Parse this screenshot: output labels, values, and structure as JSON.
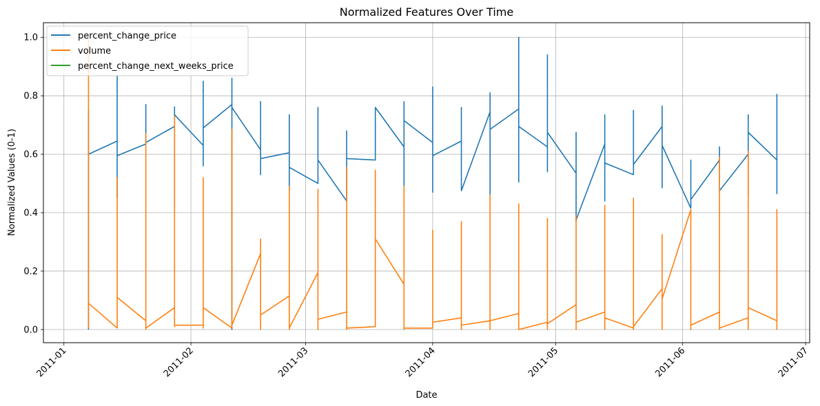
{
  "chart_data": {
    "type": "line",
    "title": "Normalized Features Over Time",
    "xlabel": "Date",
    "ylabel": "Normalized Values (0-1)",
    "x_ticks": [
      "2011-01",
      "2011-02",
      "2011-03",
      "2011-04",
      "2011-05",
      "2011-06",
      "2011-07"
    ],
    "y_ticks": [
      "0.0",
      "0.2",
      "0.4",
      "0.6",
      "0.8",
      "1.0"
    ],
    "xlim": [
      "2010-12-27",
      "2011-07-02"
    ],
    "ylim": [
      -0.045,
      1.05
    ],
    "grid": true,
    "legend_position": "upper-left",
    "series": [
      {
        "name": "percent_change_price",
        "color": "#1f77b4",
        "points": [
          [
            "2011-01-07",
            0.0
          ],
          [
            "2011-01-07",
            0.75
          ],
          [
            "2011-01-07",
            0.3
          ],
          [
            "2011-01-07",
            0.6
          ],
          [
            "2011-01-14",
            0.645
          ],
          [
            "2011-01-14",
            0.45
          ],
          [
            "2011-01-14",
            0.87
          ],
          [
            "2011-01-14",
            0.53
          ],
          [
            "2011-01-14",
            0.595
          ],
          [
            "2011-01-21",
            0.635
          ],
          [
            "2011-01-21",
            0.77
          ],
          [
            "2011-01-21",
            0.64
          ],
          [
            "2011-01-28",
            0.695
          ],
          [
            "2011-01-28",
            0.42
          ],
          [
            "2011-01-28",
            0.762
          ],
          [
            "2011-01-28",
            0.735
          ],
          [
            "2011-02-04",
            0.63
          ],
          [
            "2011-02-04",
            0.56
          ],
          [
            "2011-02-04",
            0.85
          ],
          [
            "2011-02-04",
            0.69
          ],
          [
            "2011-02-11",
            0.77
          ],
          [
            "2011-02-11",
            0.0
          ],
          [
            "2011-02-11",
            0.86
          ],
          [
            "2011-02-11",
            0.76
          ],
          [
            "2011-02-18",
            0.615
          ],
          [
            "2011-02-18",
            0.53
          ],
          [
            "2011-02-18",
            0.78
          ],
          [
            "2011-02-18",
            0.585
          ],
          [
            "2011-02-25",
            0.605
          ],
          [
            "2011-02-25",
            0.48
          ],
          [
            "2011-02-25",
            0.735
          ],
          [
            "2011-02-25",
            0.555
          ],
          [
            "2011-03-04",
            0.5
          ],
          [
            "2011-03-04",
            0.76
          ],
          [
            "2011-03-04",
            0.58
          ],
          [
            "2011-03-11",
            0.44
          ],
          [
            "2011-03-11",
            0.68
          ],
          [
            "2011-03-11",
            0.585
          ],
          [
            "2011-03-18",
            0.58
          ],
          [
            "2011-03-18",
            0.76
          ],
          [
            "2011-03-25",
            0.625
          ],
          [
            "2011-03-25",
            0.49
          ],
          [
            "2011-03-25",
            0.78
          ],
          [
            "2011-03-25",
            0.715
          ],
          [
            "2011-04-01",
            0.64
          ],
          [
            "2011-04-01",
            0.47
          ],
          [
            "2011-04-01",
            0.83
          ],
          [
            "2011-04-01",
            0.595
          ],
          [
            "2011-04-08",
            0.645
          ],
          [
            "2011-04-08",
            0.76
          ],
          [
            "2011-04-08",
            0.475
          ],
          [
            "2011-04-15",
            0.745
          ],
          [
            "2011-04-15",
            0.46
          ],
          [
            "2011-04-15",
            0.81
          ],
          [
            "2011-04-15",
            0.685
          ],
          [
            "2011-04-22",
            0.755
          ],
          [
            "2011-04-22",
            0.505
          ],
          [
            "2011-04-22",
            1.0
          ],
          [
            "2011-04-22",
            0.695
          ],
          [
            "2011-04-29",
            0.625
          ],
          [
            "2011-04-29",
            0.54
          ],
          [
            "2011-04-29",
            0.94
          ],
          [
            "2011-04-29",
            0.675
          ],
          [
            "2011-05-06",
            0.535
          ],
          [
            "2011-05-06",
            0.37
          ],
          [
            "2011-05-06",
            0.675
          ],
          [
            "2011-05-06",
            0.375
          ],
          [
            "2011-05-13",
            0.635
          ],
          [
            "2011-05-13",
            0.44
          ],
          [
            "2011-05-13",
            0.735
          ],
          [
            "2011-05-13",
            0.57
          ],
          [
            "2011-05-20",
            0.53
          ],
          [
            "2011-05-20",
            0.75
          ],
          [
            "2011-05-20",
            0.565
          ],
          [
            "2011-05-27",
            0.695
          ],
          [
            "2011-05-27",
            0.485
          ],
          [
            "2011-05-27",
            0.765
          ],
          [
            "2011-05-27",
            0.63
          ],
          [
            "2011-06-03",
            0.415
          ],
          [
            "2011-06-03",
            0.58
          ],
          [
            "2011-06-03",
            0.445
          ],
          [
            "2011-06-10",
            0.58
          ],
          [
            "2011-06-10",
            0.625
          ],
          [
            "2011-06-10",
            0.475
          ],
          [
            "2011-06-17",
            0.6
          ],
          [
            "2011-06-17",
            0.46
          ],
          [
            "2011-06-17",
            0.735
          ],
          [
            "2011-06-17",
            0.675
          ],
          [
            "2011-06-24",
            0.58
          ],
          [
            "2011-06-24",
            0.465
          ],
          [
            "2011-06-24",
            0.805
          ],
          [
            "2011-06-24",
            0.58
          ]
        ]
      },
      {
        "name": "volume",
        "color": "#ff7f0e",
        "points": [
          [
            "2011-01-07",
            0.005
          ],
          [
            "2011-01-07",
            0.99
          ],
          [
            "2011-01-07",
            0.09
          ],
          [
            "2011-01-14",
            0.005
          ],
          [
            "2011-01-14",
            0.52
          ],
          [
            "2011-01-14",
            0.11
          ],
          [
            "2011-01-21",
            0.03
          ],
          [
            "2011-01-21",
            0.0
          ],
          [
            "2011-01-21",
            0.67
          ],
          [
            "2011-01-21",
            0.005
          ],
          [
            "2011-01-28",
            0.075
          ],
          [
            "2011-01-28",
            0.01
          ],
          [
            "2011-01-28",
            0.73
          ],
          [
            "2011-01-28",
            0.015
          ],
          [
            "2011-02-04",
            0.015
          ],
          [
            "2011-02-04",
            0.005
          ],
          [
            "2011-02-04",
            0.52
          ],
          [
            "2011-02-04",
            0.075
          ],
          [
            "2011-02-11",
            0.005
          ],
          [
            "2011-02-11",
            0.685
          ],
          [
            "2011-02-11",
            0.015
          ],
          [
            "2011-02-18",
            0.26
          ],
          [
            "2011-02-18",
            0.0
          ],
          [
            "2011-02-18",
            0.31
          ],
          [
            "2011-02-18",
            0.05
          ],
          [
            "2011-02-25",
            0.115
          ],
          [
            "2011-02-25",
            0.0
          ],
          [
            "2011-02-25",
            0.49
          ],
          [
            "2011-02-25",
            0.005
          ],
          [
            "2011-03-04",
            0.195
          ],
          [
            "2011-03-04",
            0.0
          ],
          [
            "2011-03-04",
            0.48
          ],
          [
            "2011-03-04",
            0.035
          ],
          [
            "2011-03-11",
            0.06
          ],
          [
            "2011-03-11",
            0.0
          ],
          [
            "2011-03-11",
            0.555
          ],
          [
            "2011-03-11",
            0.005
          ],
          [
            "2011-03-18",
            0.01
          ],
          [
            "2011-03-18",
            0.545
          ],
          [
            "2011-03-18",
            0.31
          ],
          [
            "2011-03-25",
            0.155
          ],
          [
            "2011-03-25",
            0.0
          ],
          [
            "2011-03-25",
            0.49
          ],
          [
            "2011-03-25",
            0.005
          ],
          [
            "2011-04-01",
            0.005
          ],
          [
            "2011-04-01",
            0.34
          ],
          [
            "2011-04-01",
            0.025
          ],
          [
            "2011-04-08",
            0.04
          ],
          [
            "2011-04-08",
            0.0
          ],
          [
            "2011-04-08",
            0.37
          ],
          [
            "2011-04-08",
            0.015
          ],
          [
            "2011-04-15",
            0.03
          ],
          [
            "2011-04-15",
            0.0
          ],
          [
            "2011-04-15",
            0.46
          ],
          [
            "2011-04-15",
            0.03
          ],
          [
            "2011-04-22",
            0.055
          ],
          [
            "2011-04-22",
            0.0
          ],
          [
            "2011-04-22",
            0.43
          ],
          [
            "2011-04-22",
            0.0
          ],
          [
            "2011-04-29",
            0.025
          ],
          [
            "2011-04-29",
            0.0
          ],
          [
            "2011-04-29",
            0.38
          ],
          [
            "2011-04-29",
            0.02
          ],
          [
            "2011-05-06",
            0.085
          ],
          [
            "2011-05-06",
            0.0
          ],
          [
            "2011-05-06",
            0.39
          ],
          [
            "2011-05-06",
            0.025
          ],
          [
            "2011-05-13",
            0.06
          ],
          [
            "2011-05-13",
            0.0
          ],
          [
            "2011-05-13",
            0.425
          ],
          [
            "2011-05-13",
            0.04
          ],
          [
            "2011-05-20",
            0.005
          ],
          [
            "2011-05-20",
            0.0
          ],
          [
            "2011-05-20",
            0.45
          ],
          [
            "2011-05-20",
            0.01
          ],
          [
            "2011-05-27",
            0.14
          ],
          [
            "2011-05-27",
            0.0
          ],
          [
            "2011-05-27",
            0.325
          ],
          [
            "2011-05-27",
            0.105
          ],
          [
            "2011-06-03",
            0.41
          ],
          [
            "2011-06-03",
            0.0
          ],
          [
            "2011-06-03",
            0.015
          ],
          [
            "2011-06-10",
            0.06
          ],
          [
            "2011-06-10",
            0.0
          ],
          [
            "2011-06-10",
            0.59
          ],
          [
            "2011-06-10",
            0.005
          ],
          [
            "2011-06-17",
            0.04
          ],
          [
            "2011-06-17",
            0.0
          ],
          [
            "2011-06-17",
            0.61
          ],
          [
            "2011-06-17",
            0.075
          ],
          [
            "2011-06-24",
            0.03
          ],
          [
            "2011-06-24",
            0.0
          ],
          [
            "2011-06-24",
            0.41
          ],
          [
            "2011-06-24",
            0.03
          ]
        ]
      },
      {
        "name": "percent_change_next_weeks_price",
        "color": "#2ca02c",
        "points": []
      }
    ]
  }
}
